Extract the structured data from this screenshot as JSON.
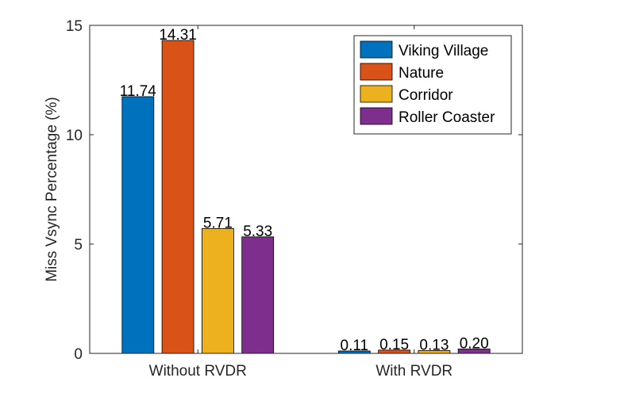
{
  "chart_data": {
    "type": "bar",
    "categories": [
      "Without RVDR",
      "With RVDR"
    ],
    "series": [
      {
        "name": "Viking Village",
        "color": "#0072BD",
        "values": [
          11.74,
          0.11
        ],
        "labels": [
          "11.74",
          "0.11"
        ]
      },
      {
        "name": "Nature",
        "color": "#D95319",
        "values": [
          14.31,
          0.15
        ],
        "labels": [
          "14.31",
          "0.15"
        ]
      },
      {
        "name": "Corridor",
        "color": "#EDB120",
        "values": [
          5.71,
          0.13
        ],
        "labels": [
          "5.71",
          "0.13"
        ]
      },
      {
        "name": "Roller Coaster",
        "color": "#7E2F8E",
        "values": [
          5.33,
          0.2
        ],
        "labels": [
          "5.33",
          "0.20"
        ]
      }
    ],
    "xlabel": "",
    "ylabel": "Miss Vsync Percentage (%)",
    "ylim": [
      0,
      15
    ],
    "yticks": [
      "0",
      "5",
      "10",
      "15"
    ],
    "grid": false,
    "legend_position": "top-right"
  }
}
